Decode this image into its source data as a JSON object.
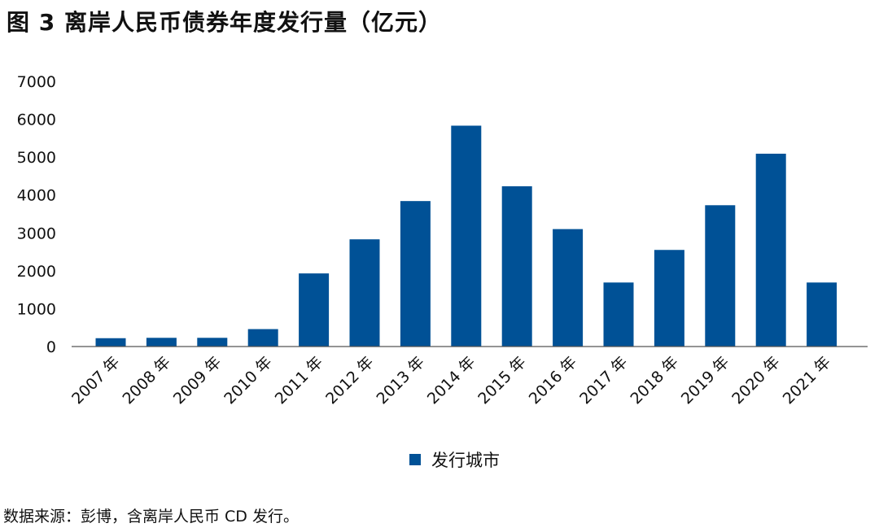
{
  "figure_title": "图 3  离岸人民币债券年度发行量（亿元）",
  "source_note": "数据来源：彭博，含离岸人民币 CD 发行。",
  "bar_color": "#005196",
  "chart_data": {
    "type": "bar",
    "categories": [
      "2007 年",
      "2008 年",
      "2009 年",
      "2010 年",
      "2011 年",
      "2012 年",
      "2013 年",
      "2014 年",
      "2015 年",
      "2016 年",
      "2017 年",
      "2018 年",
      "2019 年",
      "2020 年",
      "2021 年"
    ],
    "series": [
      {
        "name": "发行城市",
        "values": [
          220,
          230,
          230,
          460,
          1930,
          2830,
          3840,
          5830,
          4230,
          3100,
          1690,
          2550,
          3730,
          5090,
          1690
        ]
      }
    ],
    "ylim": [
      0,
      7000
    ],
    "yticks": [
      "0",
      "1000",
      "2000",
      "3000",
      "4000",
      "5000",
      "6000",
      "7000"
    ],
    "ytick_values": [
      0,
      1000,
      2000,
      3000,
      4000,
      5000,
      6000,
      7000
    ],
    "grid": false,
    "legend_position": "bottom"
  }
}
